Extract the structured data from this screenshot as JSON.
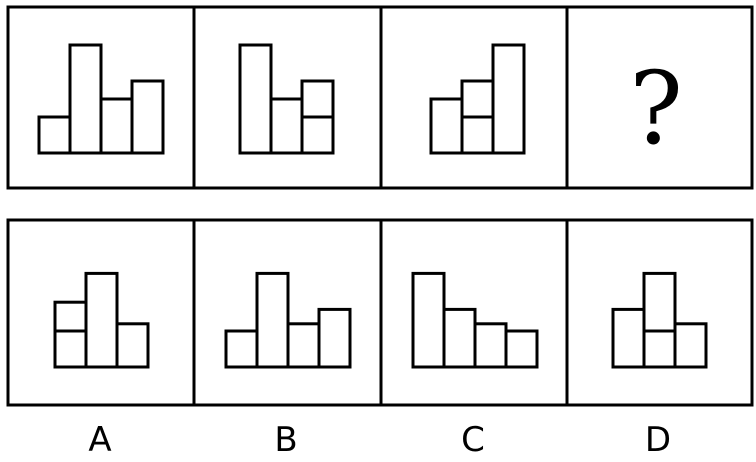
{
  "question_row": {
    "cells": [
      {
        "name": "figure-1",
        "rects": [
          [
            0,
            0,
            1,
            1
          ],
          [
            1,
            0,
            1,
            3
          ],
          [
            2,
            0,
            1,
            1.5
          ],
          [
            3,
            0,
            1,
            2
          ]
        ]
      },
      {
        "name": "figure-2",
        "rects": [
          [
            0,
            0,
            1,
            3
          ],
          [
            1,
            0,
            1,
            1.5
          ],
          [
            2,
            0,
            1,
            1
          ],
          [
            2,
            1,
            1,
            1
          ]
        ]
      },
      {
        "name": "figure-3",
        "rects": [
          [
            0,
            0,
            1,
            1.5
          ],
          [
            1,
            0,
            1,
            1
          ],
          [
            1,
            1,
            1,
            1
          ],
          [
            2,
            0,
            1,
            3
          ]
        ]
      },
      {
        "name": "figure-unknown",
        "question_mark": "?"
      }
    ]
  },
  "option_row": {
    "cells": [
      {
        "name": "option-a",
        "rects": [
          [
            0,
            0,
            1,
            1
          ],
          [
            0,
            1,
            1,
            0.8
          ],
          [
            1,
            0,
            1,
            2.6
          ],
          [
            2,
            0,
            1,
            1.2
          ]
        ]
      },
      {
        "name": "option-b",
        "rects": [
          [
            0,
            0,
            1,
            1
          ],
          [
            1,
            0,
            1,
            2.6
          ],
          [
            2,
            0,
            1,
            1.2
          ],
          [
            3,
            0,
            1,
            1.6
          ]
        ]
      },
      {
        "name": "option-c",
        "rects": [
          [
            0,
            0,
            1,
            2.6
          ],
          [
            1,
            0,
            1,
            1.6
          ],
          [
            2,
            0,
            1,
            1.2
          ],
          [
            3,
            0,
            1,
            1
          ]
        ]
      },
      {
        "name": "option-d",
        "rects": [
          [
            0,
            0,
            1,
            1.6
          ],
          [
            1,
            0,
            1,
            1
          ],
          [
            1,
            1,
            1,
            1.6
          ],
          [
            2,
            0,
            1,
            1.2
          ]
        ]
      }
    ]
  },
  "option_labels": [
    "A",
    "B",
    "C",
    "D"
  ]
}
